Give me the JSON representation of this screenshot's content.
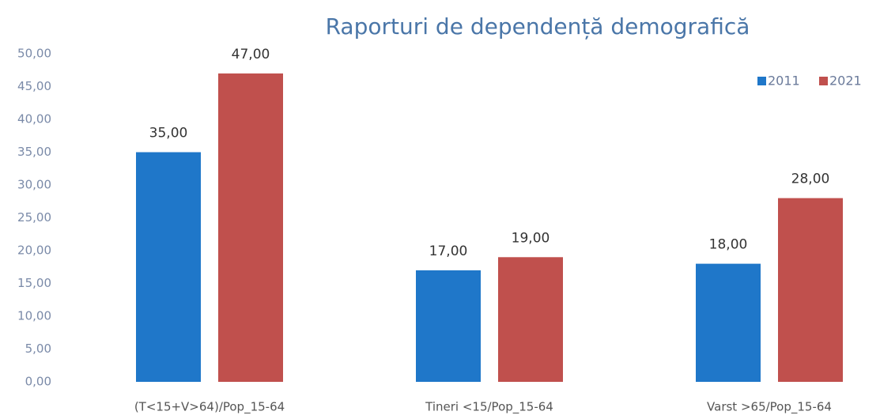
{
  "chart_data": {
    "type": "bar",
    "title": "Raporturi de dependență demografică",
    "categories": [
      "(T<15+V>64)/Pop_15-64",
      "Tineri <15/Pop_15-64",
      "Varst >65/Pop_15-64"
    ],
    "series": [
      {
        "name": "2011",
        "color": "#1f77c9",
        "values": [
          35,
          17,
          18
        ],
        "value_labels": [
          "35,00",
          "17,00",
          "18,00"
        ]
      },
      {
        "name": "2021",
        "color": "#c0504d",
        "values": [
          47,
          19,
          28
        ],
        "value_labels": [
          "47,00",
          "19,00",
          "28,00"
        ]
      }
    ],
    "ylim": [
      0,
      50
    ],
    "yticks": [
      {
        "value": 0,
        "label": "0,00"
      },
      {
        "value": 5,
        "label": "5,00"
      },
      {
        "value": 10,
        "label": "10,00"
      },
      {
        "value": 15,
        "label": "15,00"
      },
      {
        "value": 20,
        "label": "20,00"
      },
      {
        "value": 25,
        "label": "25,00"
      },
      {
        "value": 30,
        "label": "30,00"
      },
      {
        "value": 35,
        "label": "35,00"
      },
      {
        "value": 40,
        "label": "40,00"
      },
      {
        "value": 45,
        "label": "45,00"
      },
      {
        "value": 50,
        "label": "50,00"
      }
    ],
    "grid": false,
    "legend": "top-right"
  }
}
